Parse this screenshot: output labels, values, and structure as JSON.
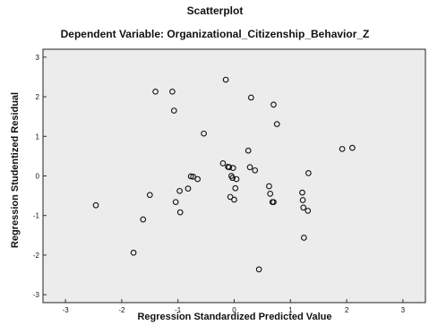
{
  "chart_data": {
    "type": "scatter",
    "title": "Scatterplot",
    "subtitle": "Dependent Variable: Organizational_Citizenship_Behavior_Z",
    "xlabel": "Regression Standardized Predicted Value",
    "ylabel": "Regression Studentized Residual",
    "xlim": [
      -3.4,
      3.4
    ],
    "ylim": [
      -3.2,
      3.2
    ],
    "x_ticks": [
      -3,
      -2,
      -1,
      0,
      1,
      2,
      3
    ],
    "y_ticks": [
      3,
      2,
      1,
      0,
      -1,
      -2,
      -3
    ],
    "x_tick_labels": [
      "-3",
      "-2",
      "-1",
      "0",
      "1",
      "2",
      "3"
    ],
    "y_tick_labels": [
      "3",
      "2",
      "1",
      "0",
      "-1",
      "-2",
      "-3"
    ],
    "grid": false,
    "marker": "open-circle",
    "colors": {
      "plot_background": "#ececec",
      "marker": "#111111",
      "text": "#111111"
    },
    "points": [
      {
        "x": -2.46,
        "y": -0.74
      },
      {
        "x": -1.79,
        "y": -1.94
      },
      {
        "x": -1.62,
        "y": -1.1
      },
      {
        "x": -1.5,
        "y": -0.48
      },
      {
        "x": -1.4,
        "y": 2.13
      },
      {
        "x": -1.1,
        "y": 2.13
      },
      {
        "x": -1.07,
        "y": 1.65
      },
      {
        "x": -1.04,
        "y": -0.66
      },
      {
        "x": -0.97,
        "y": -0.38
      },
      {
        "x": -0.96,
        "y": -0.92
      },
      {
        "x": -0.82,
        "y": -0.32
      },
      {
        "x": -0.77,
        "y": -0.01
      },
      {
        "x": -0.73,
        "y": -0.02
      },
      {
        "x": -0.65,
        "y": -0.08
      },
      {
        "x": -0.54,
        "y": 1.07
      },
      {
        "x": -0.2,
        "y": 0.32
      },
      {
        "x": -0.15,
        "y": 2.43
      },
      {
        "x": -0.11,
        "y": 0.23
      },
      {
        "x": -0.09,
        "y": 0.22
      },
      {
        "x": -0.07,
        "y": -0.53
      },
      {
        "x": -0.05,
        "y": 0.0
      },
      {
        "x": -0.03,
        "y": -0.05
      },
      {
        "x": -0.02,
        "y": 0.2
      },
      {
        "x": 0.0,
        "y": -0.6
      },
      {
        "x": 0.02,
        "y": -0.31
      },
      {
        "x": 0.04,
        "y": -0.08
      },
      {
        "x": 0.25,
        "y": 0.64
      },
      {
        "x": 0.28,
        "y": 0.22
      },
      {
        "x": 0.3,
        "y": 1.98
      },
      {
        "x": 0.37,
        "y": 0.14
      },
      {
        "x": 0.44,
        "y": -2.36
      },
      {
        "x": 0.62,
        "y": -0.26
      },
      {
        "x": 0.64,
        "y": -0.45
      },
      {
        "x": 0.68,
        "y": -0.66
      },
      {
        "x": 0.7,
        "y": 1.8
      },
      {
        "x": 0.7,
        "y": -0.66
      },
      {
        "x": 0.76,
        "y": 1.31
      },
      {
        "x": 1.21,
        "y": -0.42
      },
      {
        "x": 1.22,
        "y": -0.61
      },
      {
        "x": 1.23,
        "y": -0.8
      },
      {
        "x": 1.24,
        "y": -1.56
      },
      {
        "x": 1.31,
        "y": -0.88
      },
      {
        "x": 1.32,
        "y": 0.07
      },
      {
        "x": 1.92,
        "y": 0.68
      },
      {
        "x": 2.1,
        "y": 0.71
      }
    ]
  }
}
